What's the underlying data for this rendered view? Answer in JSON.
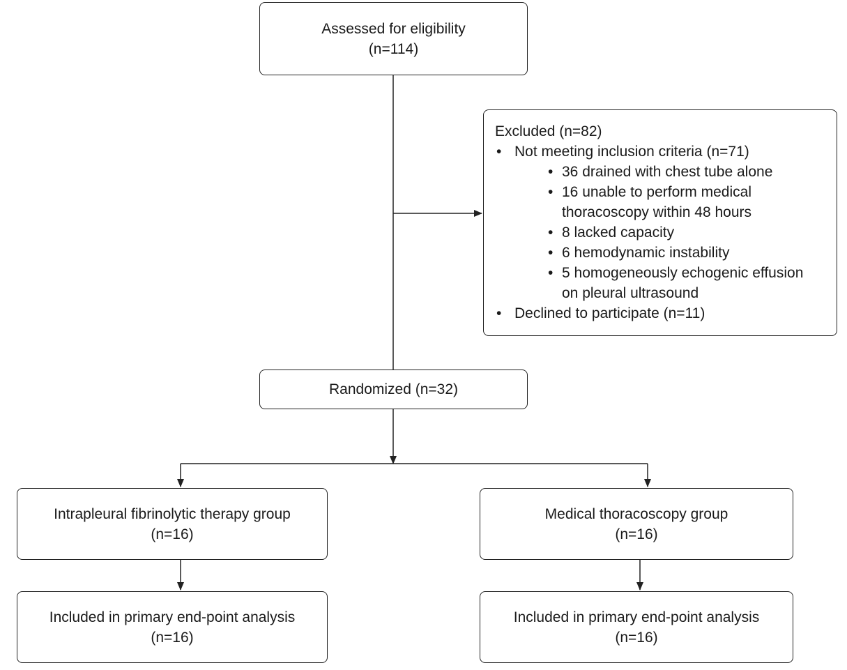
{
  "assessed": {
    "label": "Assessed for eligibility",
    "count": "(n=114)"
  },
  "excluded": {
    "title": "Excluded (n=82)",
    "items": [
      {
        "label": "Not meeting inclusion criteria (n=71)",
        "subitems": [
          {
            "lines": [
              "36 drained with chest tube alone"
            ]
          },
          {
            "lines": [
              "16 unable to perform medical",
              "thoracoscopy within 48 hours"
            ]
          },
          {
            "lines": [
              "8 lacked capacity"
            ]
          },
          {
            "lines": [
              "6 hemodynamic instability"
            ]
          },
          {
            "lines": [
              "5 homogeneously echogenic effusion",
              "on pleural ultrasound"
            ]
          }
        ]
      },
      {
        "label": "Declined to participate (n=11)"
      }
    ]
  },
  "randomized": {
    "label": "Randomized (n=32)"
  },
  "groups": {
    "left": {
      "label": "Intrapleural fibrinolytic therapy group",
      "count": "(n=16)"
    },
    "right": {
      "label": "Medical thoracoscopy group",
      "count": "(n=16)"
    }
  },
  "analysis": {
    "left": {
      "label": "Included in primary end-point analysis",
      "count": "(n=16)"
    },
    "right": {
      "label": "Included in primary end-point analysis",
      "count": "(n=16)"
    }
  }
}
